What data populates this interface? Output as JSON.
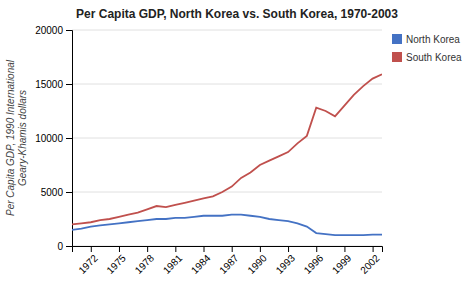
{
  "chart_data": {
    "type": "line",
    "title": "Per Capita GDP, North Korea vs. South Korea, 1970-2003",
    "y_label": "Per Capita GDP, 1990 International\nGeary-Khamis dollars",
    "x": [
      1970,
      1971,
      1972,
      1973,
      1974,
      1975,
      1976,
      1977,
      1978,
      1979,
      1980,
      1981,
      1982,
      1983,
      1984,
      1985,
      1986,
      1987,
      1988,
      1989,
      1990,
      1991,
      1992,
      1993,
      1994,
      1995,
      1996,
      1997,
      1998,
      1999,
      2000,
      2001,
      2002,
      2003
    ],
    "series": [
      {
        "name": "North Korea",
        "color": "#4472C4",
        "values": [
          1500,
          1600,
          1800,
          1900,
          2000,
          2100,
          2200,
          2300,
          2400,
          2500,
          2500,
          2600,
          2600,
          2700,
          2800,
          2800,
          2800,
          2900,
          2900,
          2800,
          2700,
          2500,
          2400,
          2300,
          2100,
          1800,
          1200,
          1100,
          1000,
          1000,
          1000,
          1000,
          1050,
          1050
        ]
      },
      {
        "name": "South Korea",
        "color": "#C0504D",
        "values": [
          2000,
          2100,
          2200,
          2400,
          2500,
          2700,
          2900,
          3100,
          3400,
          3700,
          3600,
          3800,
          4000,
          4200,
          4400,
          4600,
          5000,
          5500,
          6300,
          6800,
          7500,
          7900,
          8300,
          8700,
          9500,
          10200,
          12800,
          12500,
          12000,
          13000,
          14000,
          14800,
          15500,
          15900
        ]
      }
    ],
    "xlim": [
      1970,
      2003
    ],
    "xticks": [
      1972,
      1975,
      1978,
      1981,
      1984,
      1987,
      1990,
      1993,
      1996,
      1999,
      2002
    ],
    "ylim": [
      0,
      20000
    ],
    "yticks": [
      0,
      5000,
      10000,
      15000,
      20000
    ],
    "grid": true,
    "legend": "right"
  }
}
